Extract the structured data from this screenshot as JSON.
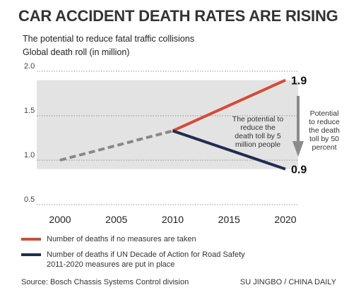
{
  "title": "CAR ACCIDENT DEATH RATES ARE RISING",
  "subtitle_line1": "The potential to reduce fatal traffic collisions",
  "subtitle_line2": "Global death roll (in million)",
  "legend": {
    "red": "Number of deaths if no measures are taken",
    "navy_line1": "Number of deaths if UN Decade of Action for Road Safety",
    "navy_line2": "2011-2020 measures are put in place"
  },
  "annotations": {
    "inside_lines": [
      "The potential to",
      "reduce the",
      "death toll by 5",
      "million people"
    ],
    "right_lines": [
      "Potential",
      "to reduce",
      "the death",
      "toll by 50",
      "percent"
    ]
  },
  "source": "Source:  Bosch Chassis Systems Control division",
  "credit": "SU JINGBO / CHINA DAILY",
  "colors": {
    "no_measures": "#d64a35",
    "with_measures": "#1f2d52",
    "history": "#888888",
    "band": "#e3e3e3",
    "arrow": "#8a8a8a"
  },
  "chart_data": {
    "type": "line",
    "xlim": [
      2000,
      2020
    ],
    "ylim": [
      0.5,
      2.0
    ],
    "x_ticks": [
      "2000",
      "2005",
      "2010",
      "2015",
      "2020"
    ],
    "y_ticks": [
      "0.5",
      "1.0",
      "1.5",
      "2.0"
    ],
    "grid": "dotted horizontal",
    "series": [
      {
        "name": "",
        "style": "dashed",
        "x": [
          2000,
          2010
        ],
        "y": [
          1.0,
          1.33
        ]
      },
      {
        "name": "Number of deaths if no measures are taken",
        "x": [
          2010,
          2020
        ],
        "y": [
          1.33,
          1.9
        ]
      },
      {
        "name": "Number of deaths if UN Decade of Action for Road Safety 2011-2020 measures are put in place",
        "x": [
          2010,
          2020
        ],
        "y": [
          1.33,
          0.9
        ]
      }
    ],
    "end_labels": [
      "1.9",
      "0.9"
    ],
    "shaded_band": [
      0.9,
      1.9
    ]
  }
}
